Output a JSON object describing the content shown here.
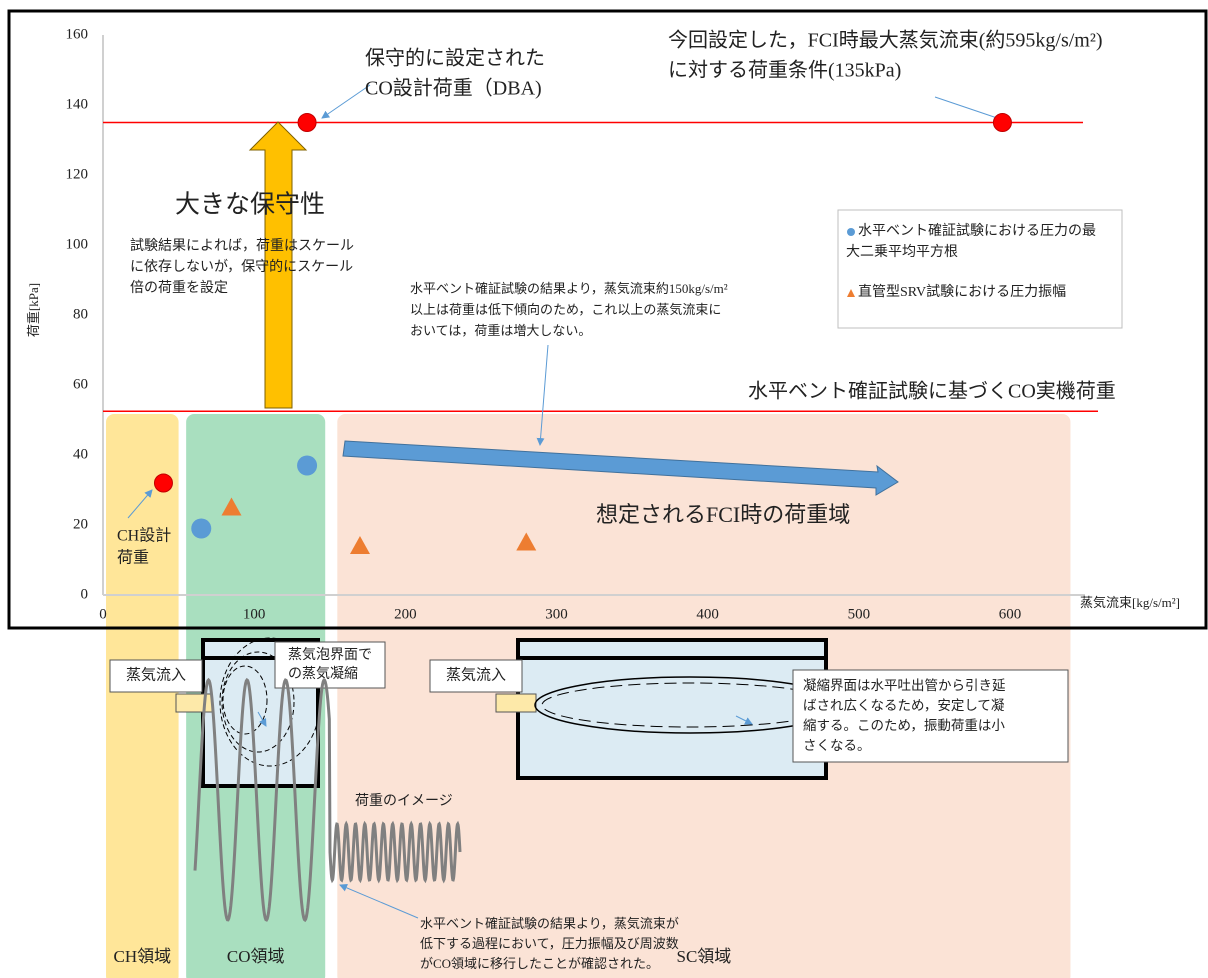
{
  "chart_data": {
    "type": "scatter",
    "x_label": "蒸気流束[kg/s/m²]",
    "y_label": "荷重[kPa]",
    "xlim": [
      0,
      600
    ],
    "xticks": [
      0,
      100,
      200,
      300,
      400,
      500,
      600
    ],
    "ylim": [
      0,
      160
    ],
    "yticks": [
      0,
      20,
      40,
      60,
      80,
      100,
      120,
      140,
      160
    ],
    "grid": false,
    "legend": "right",
    "series": [
      {
        "name": "水平ベント確証試験における圧力の最大二乗平均平方根",
        "color": "#5b9bd5",
        "marker": "circle",
        "x": [
          65,
          135
        ],
        "values": [
          19,
          37
        ]
      },
      {
        "name": "直管型SRV試験における圧力振幅",
        "color": "#ed7d31",
        "marker": "triangle",
        "x": [
          85,
          170,
          280
        ],
        "values": [
          25,
          14,
          15
        ]
      }
    ],
    "design_points": {
      "color": "#ff0000",
      "x": [
        40,
        135,
        595
      ],
      "values": [
        32,
        135,
        135
      ]
    },
    "reference_lines": {
      "color": "#ff0000",
      "values": [
        135,
        52.5
      ]
    },
    "regions": [
      {
        "label": "CH領域",
        "x": [
          2,
          50
        ],
        "color": "#ffe699"
      },
      {
        "label": "CO領域",
        "x": [
          55,
          147
        ],
        "color": "#a9dfbf"
      },
      {
        "label": "SC領域",
        "x": [
          155,
          640
        ],
        "color": "#fbe3d6"
      }
    ],
    "annotations": [
      {
        "lines": [
          "保守的に設定された",
          "CO設計荷重（DBA)"
        ]
      },
      {
        "lines": [
          "今回設定した，FCI時最大蒸気流束(約595kg/s/m²)",
          "に対する荷重条件(135kPa)"
        ]
      },
      {
        "lines": [
          "大きな保守性"
        ]
      },
      {
        "lines": [
          "試験結果によれば，荷重はスケール",
          "に依存しないが，保守的にスケール",
          "倍の荷重を設定"
        ]
      },
      {
        "lines": [
          "水平ベント確証試験の結果より，蒸気流束約150kg/s/m²",
          "以上は荷重は低下傾向のため，これ以上の蒸気流束に",
          "おいては，荷重は増大しない。"
        ]
      },
      {
        "lines": [
          "水平ベント確証試験に基づくCO実機荷重"
        ]
      },
      {
        "lines": [
          "想定されるFCI時の荷重域"
        ]
      },
      {
        "lines": [
          "CH設計",
          "荷重"
        ]
      }
    ]
  },
  "diagram": {
    "inflow_labels": [
      "蒸気流入",
      "蒸気流入"
    ],
    "bubble_note": [
      "蒸気泡界面で",
      "の蒸気凝縮"
    ],
    "sc_note": [
      "凝縮界面は水平吐出管から引き延",
      "ばされ広くなるため，安定して凝",
      "縮する。このため，振動荷重は小",
      "さくなる。"
    ],
    "load_image": "荷重のイメージ",
    "transition_note": [
      "水平ベント確証試験の結果より，蒸気流束が",
      "低下する過程において，圧力振幅及び周波数",
      "がCO領域に移行したことが確認された。"
    ]
  }
}
